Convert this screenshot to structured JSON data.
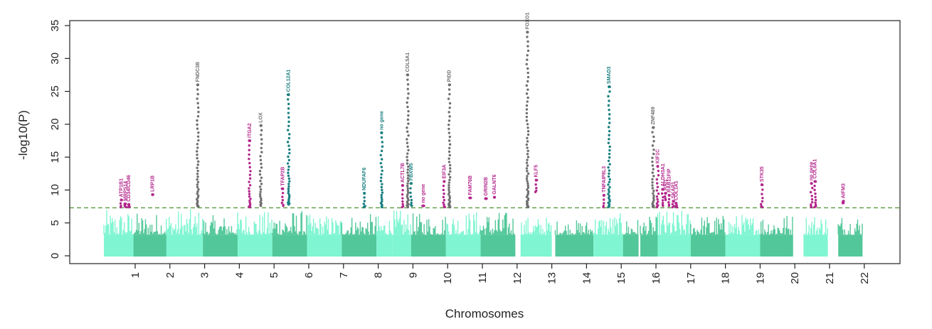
{
  "chart_data": {
    "type": "scatter",
    "subtype": "manhattan",
    "title": "",
    "xlabel": "Chromosomes",
    "ylabel": "-log10(P)",
    "ylim": [
      0,
      36
    ],
    "y_ticks": [
      0,
      5,
      10,
      15,
      20,
      25,
      30,
      35
    ],
    "x_ticks": [
      "1",
      "2",
      "3",
      "4",
      "5",
      "6",
      "7",
      "8",
      "9",
      "10",
      "11",
      "12",
      "13",
      "14",
      "15",
      "16",
      "17",
      "18",
      "19",
      "20",
      "21",
      "22"
    ],
    "grid": false,
    "legend": "none",
    "significance_threshold": 7.3,
    "colors": {
      "background_chrom_a": "#7ff5d1",
      "background_chrom_b": "#52c79a",
      "threshold_line": "#5a9a3c",
      "highlight_magenta": "#b3278c",
      "highlight_teal": "#1a7f80",
      "highlight_gray": "#6f6f6f",
      "axis": "#222222"
    },
    "chromosome_blocks": [
      {
        "chromosome": "1",
        "x_start": 0.1,
        "x_end": 0.95,
        "shade": "a",
        "peak_background": 7.0
      },
      {
        "chromosome": "1b",
        "x_start": 0.95,
        "x_end": 1.9,
        "shade": "b",
        "peak_background": 6.6
      },
      {
        "chromosome": "2",
        "x_start": 1.9,
        "x_end": 2.95,
        "shade": "a",
        "peak_background": 7.1
      },
      {
        "chromosome": "3",
        "x_start": 2.95,
        "x_end": 3.95,
        "shade": "b",
        "peak_background": 6.2
      },
      {
        "chromosome": "4",
        "x_start": 3.95,
        "x_end": 4.95,
        "shade": "a",
        "peak_background": 6.8
      },
      {
        "chromosome": "5",
        "x_start": 4.95,
        "x_end": 5.95,
        "shade": "b",
        "peak_background": 7.0
      },
      {
        "chromosome": "6",
        "x_start": 5.95,
        "x_end": 6.95,
        "shade": "a",
        "peak_background": 6.3
      },
      {
        "chromosome": "7",
        "x_start": 6.95,
        "x_end": 7.95,
        "shade": "b",
        "peak_background": 6.4
      },
      {
        "chromosome": "8",
        "x_start": 7.95,
        "x_end": 8.4,
        "shade": "a",
        "peak_background": 6.2
      },
      {
        "chromosome": "8b",
        "x_start": 8.4,
        "x_end": 8.95,
        "shade": "a",
        "peak_background": 7.0
      },
      {
        "chromosome": "9",
        "x_start": 8.95,
        "x_end": 9.95,
        "shade": "b",
        "peak_background": 6.5
      },
      {
        "chromosome": "10",
        "x_start": 9.95,
        "x_end": 10.95,
        "shade": "a",
        "peak_background": 6.9
      },
      {
        "chromosome": "11",
        "x_start": 10.95,
        "x_end": 11.95,
        "shade": "b",
        "peak_background": 6.8
      },
      {
        "chromosome": "12",
        "x_start": 12.1,
        "x_end": 13.0,
        "shade": "a",
        "peak_background": 6.0
      },
      {
        "chromosome": "13",
        "x_start": 13.1,
        "x_end": 14.2,
        "shade": "b",
        "peak_background": 5.5
      },
      {
        "chromosome": "14",
        "x_start": 14.2,
        "x_end": 15.05,
        "shade": "a",
        "peak_background": 6.5
      },
      {
        "chromosome": "15",
        "x_start": 15.05,
        "x_end": 15.5,
        "shade": "b",
        "peak_background": 5.8
      },
      {
        "chromosome": "15b",
        "x_start": 15.55,
        "x_end": 16.05,
        "shade": "b",
        "peak_background": 6.0
      },
      {
        "chromosome": "16",
        "x_start": 16.05,
        "x_end": 17.0,
        "shade": "a",
        "peak_background": 7.0
      },
      {
        "chromosome": "17",
        "x_start": 17.0,
        "x_end": 18.0,
        "shade": "b",
        "peak_background": 6.3
      },
      {
        "chromosome": "18",
        "x_start": 18.0,
        "x_end": 19.0,
        "shade": "a",
        "peak_background": 6.4
      },
      {
        "chromosome": "19",
        "x_start": 19.0,
        "x_end": 19.95,
        "shade": "b",
        "peak_background": 6.5
      },
      {
        "chromosome": "20",
        "x_start": 20.25,
        "x_end": 20.95,
        "shade": "a",
        "peak_background": 6.6
      },
      {
        "chromosome": "21",
        "x_start": 21.25,
        "x_end": 21.95,
        "shade": "b",
        "peak_background": 6.5
      }
    ],
    "loci": [
      {
        "label": "ATP1B1",
        "x": 0.6,
        "top": 8.5,
        "min": 7.4,
        "color": "highlight_magenta"
      },
      {
        "label": "MRPS14",
        "x": 0.72,
        "top": 7.9,
        "min": 7.4,
        "color": "highlight_magenta"
      },
      {
        "label": "CD34/CD46",
        "x": 0.82,
        "top": 7.8,
        "min": 7.4,
        "color": "highlight_magenta"
      },
      {
        "label": "LRP1B",
        "x": 1.5,
        "top": 9.3,
        "min": 9.3,
        "color": "highlight_magenta"
      },
      {
        "label": "FNDC3B",
        "x": 2.8,
        "top": 26.0,
        "min": 7.5,
        "color": "highlight_gray"
      },
      {
        "label": "ITGA2",
        "x": 4.3,
        "top": 17.5,
        "min": 7.4,
        "color": "highlight_magenta"
      },
      {
        "label": "LOX",
        "x": 4.62,
        "top": 19.8,
        "min": 7.6,
        "color": "highlight_gray"
      },
      {
        "label": "TFAP2B",
        "x": 5.25,
        "top": 10.2,
        "min": 7.6,
        "color": "highlight_magenta"
      },
      {
        "label": "COL12A1",
        "x": 5.42,
        "top": 24.5,
        "min": 7.8,
        "color": "highlight_teal"
      },
      {
        "label": "NDUFAF6",
        "x": 7.6,
        "top": 9.5,
        "min": 7.4,
        "color": "highlight_teal"
      },
      {
        "label": "no gene",
        "x": 8.1,
        "top": 18.7,
        "min": 7.4,
        "color": "highlight_teal"
      },
      {
        "label": "ACTL7B",
        "x": 8.7,
        "top": 10.7,
        "min": 7.4,
        "color": "highlight_magenta"
      },
      {
        "label": "COL5A1",
        "x": 8.85,
        "top": 27.5,
        "min": 7.4,
        "color": "highlight_gray"
      },
      {
        "label": "FBXW5",
        "x": 8.95,
        "top": 11.0,
        "min": 7.6,
        "color": "highlight_teal"
      },
      {
        "label": "no gene",
        "x": 9.3,
        "top": 7.6,
        "min": 7.6,
        "color": "highlight_magenta"
      },
      {
        "label": "EIF3A",
        "x": 9.9,
        "top": 11.3,
        "min": 7.4,
        "color": "highlight_magenta"
      },
      {
        "label": "PIDD",
        "x": 10.05,
        "top": 26.0,
        "min": 7.4,
        "color": "highlight_gray"
      },
      {
        "label": "FAM76B",
        "x": 10.65,
        "top": 8.8,
        "min": 8.8,
        "color": "highlight_magenta"
      },
      {
        "label": "GRIN2B",
        "x": 11.1,
        "top": 8.7,
        "min": 8.7,
        "color": "highlight_magenta"
      },
      {
        "label": "GALNT6",
        "x": 11.35,
        "top": 8.9,
        "min": 8.9,
        "color": "highlight_magenta"
      },
      {
        "label": "FOXO1",
        "x": 12.3,
        "top": 34.0,
        "min": 7.4,
        "color": "highlight_gray"
      },
      {
        "label": "KLF5",
        "x": 12.55,
        "top": 11.5,
        "min": 9.7,
        "color": "highlight_magenta"
      },
      {
        "label": "TNFAIP8L3",
        "x": 14.5,
        "top": 9.2,
        "min": 7.4,
        "color": "highlight_magenta"
      },
      {
        "label": "SMAD3",
        "x": 14.65,
        "top": 25.7,
        "min": 7.4,
        "color": "highlight_teal"
      },
      {
        "label": "ZNF469",
        "x": 15.92,
        "top": 19.5,
        "min": 7.4,
        "color": "highlight_gray"
      },
      {
        "label": "KIF1C",
        "x": 16.05,
        "top": 13.6,
        "min": 7.4,
        "color": "highlight_magenta"
      },
      {
        "label": "ALDH3A1",
        "x": 16.2,
        "top": 10.1,
        "min": 7.6,
        "color": "highlight_magenta"
      },
      {
        "label": "RAI1",
        "x": 16.28,
        "top": 9.5,
        "min": 8.5,
        "color": "highlight_magenta"
      },
      {
        "label": "RAB11FIP",
        "x": 16.38,
        "top": 9.2,
        "min": 7.6,
        "color": "highlight_magenta"
      },
      {
        "label": "SKAP1",
        "x": 16.5,
        "top": 8.3,
        "min": 7.4,
        "color": "highlight_magenta"
      },
      {
        "label": "COL1A1",
        "x": 16.58,
        "top": 8.0,
        "min": 7.4,
        "color": "highlight_magenta"
      },
      {
        "label": "STK35",
        "x": 19.05,
        "top": 10.8,
        "min": 7.4,
        "color": "highlight_magenta"
      },
      {
        "label": "no gene",
        "x": 20.48,
        "top": 11.0,
        "min": 7.4,
        "color": "highlight_magenta"
      },
      {
        "label": "COL6A1",
        "x": 20.58,
        "top": 11.3,
        "min": 7.4,
        "color": "highlight_magenta"
      },
      {
        "label": "AIFM3",
        "x": 21.4,
        "top": 8.3,
        "min": 8.0,
        "color": "highlight_magenta"
      }
    ]
  }
}
